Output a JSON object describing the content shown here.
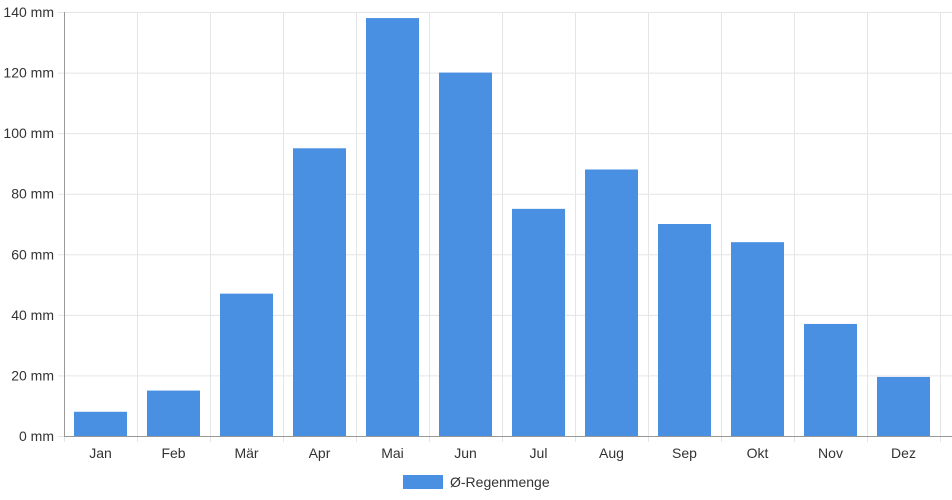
{
  "chart_data": {
    "type": "bar",
    "categories": [
      "Jan",
      "Feb",
      "Mär",
      "Apr",
      "Mai",
      "Jun",
      "Jul",
      "Aug",
      "Sep",
      "Okt",
      "Nov",
      "Dez"
    ],
    "series": [
      {
        "name": "Ø-Regenmenge",
        "values": [
          8,
          15,
          47,
          95,
          138,
          120,
          75,
          88,
          70,
          64,
          37,
          19.5
        ]
      }
    ],
    "title": "",
    "xlabel": "",
    "ylabel": "",
    "ylim": [
      0,
      140
    ],
    "yticks": [
      0,
      20,
      40,
      60,
      80,
      100,
      120,
      140
    ],
    "ytick_unit": "mm",
    "grid": true,
    "legend_position": "bottom-center",
    "colors": {
      "bar": "#4a90e2",
      "grid": "#e5e5e5",
      "axis": "#999999",
      "text": "#333333"
    }
  }
}
